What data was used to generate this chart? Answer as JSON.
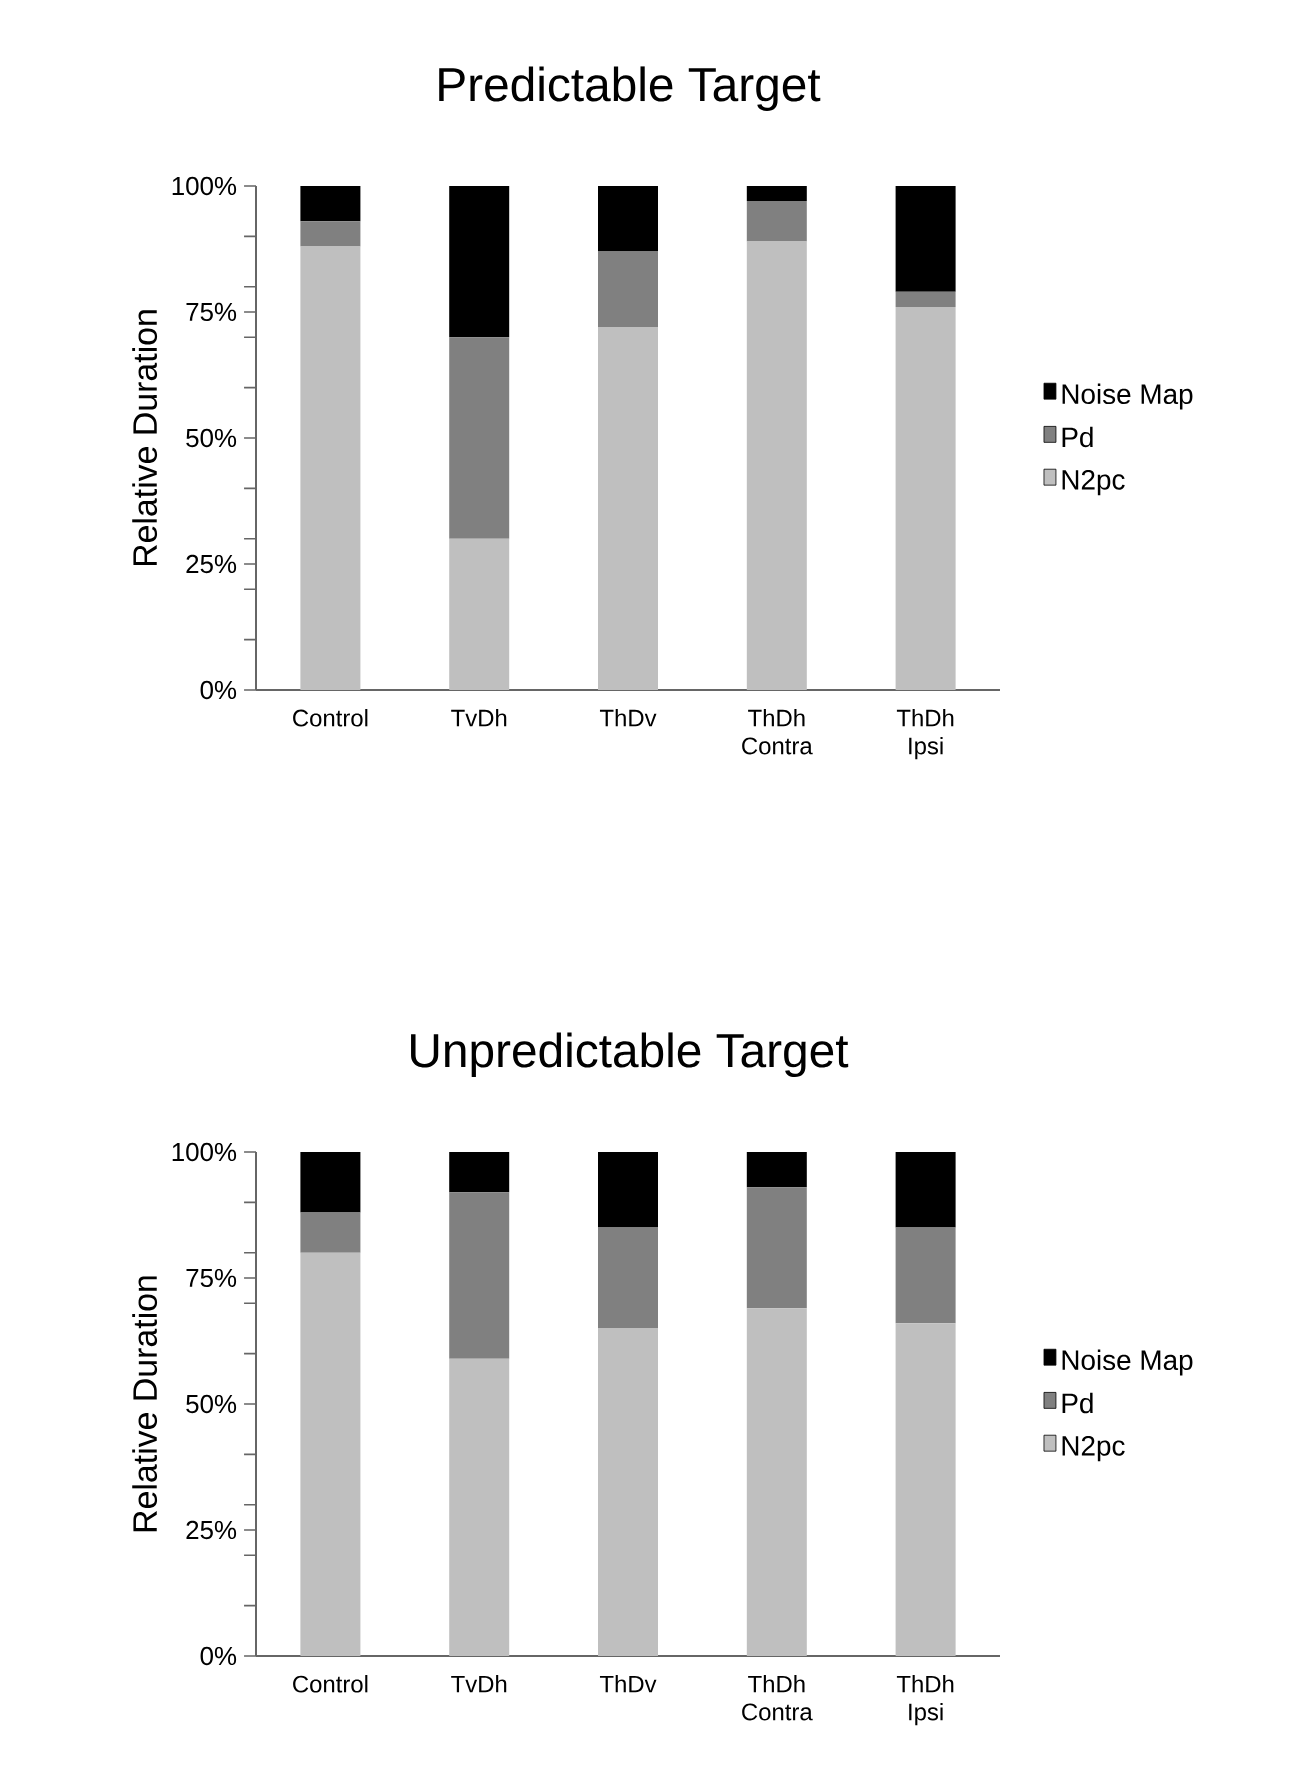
{
  "chart_data": [
    {
      "type": "bar",
      "stacked": true,
      "title": "Predictable Target",
      "ylabel": "Relative Duration",
      "categories": [
        "Control",
        "TvDh",
        "ThDv",
        "ThDh Contra",
        "ThDh Ipsi"
      ],
      "series": [
        {
          "name": "N2pc",
          "color": "#bfbfbf",
          "values": [
            88,
            30,
            72,
            89,
            76
          ]
        },
        {
          "name": "Pd",
          "color": "#808080",
          "values": [
            5,
            40,
            15,
            8,
            3
          ]
        },
        {
          "name": "Noise Map",
          "color": "#000000",
          "values": [
            7,
            30,
            13,
            3,
            21
          ]
        }
      ],
      "ylim": [
        0,
        100
      ],
      "yticks": [
        {
          "value": 0,
          "label": "0%"
        },
        {
          "value": 10,
          "label": null
        },
        {
          "value": 20,
          "label": null
        },
        {
          "value": 25,
          "label": "25%"
        },
        {
          "value": 30,
          "label": null
        },
        {
          "value": 40,
          "label": null
        },
        {
          "value": 50,
          "label": "50%"
        },
        {
          "value": 60,
          "label": null
        },
        {
          "value": 70,
          "label": null
        },
        {
          "value": 75,
          "label": "75%"
        },
        {
          "value": 80,
          "label": null
        },
        {
          "value": 90,
          "label": null
        },
        {
          "value": 100,
          "label": "100%"
        }
      ],
      "legend": "right",
      "grid": false
    },
    {
      "type": "bar",
      "stacked": true,
      "title": "Unpredictable Target",
      "ylabel": "Relative Duration",
      "categories": [
        "Control",
        "TvDh",
        "ThDv",
        "ThDh Contra",
        "ThDh Ipsi"
      ],
      "series": [
        {
          "name": "N2pc",
          "color": "#bfbfbf",
          "values": [
            80,
            59,
            65,
            69,
            66
          ]
        },
        {
          "name": "Pd",
          "color": "#808080",
          "values": [
            8,
            33,
            20,
            24,
            19
          ]
        },
        {
          "name": "Noise Map",
          "color": "#000000",
          "values": [
            12,
            8,
            15,
            7,
            15
          ]
        }
      ],
      "ylim": [
        0,
        100
      ],
      "yticks": [
        {
          "value": 0,
          "label": "0%"
        },
        {
          "value": 10,
          "label": null
        },
        {
          "value": 20,
          "label": null
        },
        {
          "value": 25,
          "label": "25%"
        },
        {
          "value": 30,
          "label": null
        },
        {
          "value": 40,
          "label": null
        },
        {
          "value": 50,
          "label": "50%"
        },
        {
          "value": 60,
          "label": null
        },
        {
          "value": 70,
          "label": null
        },
        {
          "value": 75,
          "label": "75%"
        },
        {
          "value": 80,
          "label": null
        },
        {
          "value": 90,
          "label": null
        },
        {
          "value": 100,
          "label": "100%"
        }
      ],
      "legend": "right",
      "grid": false
    }
  ]
}
